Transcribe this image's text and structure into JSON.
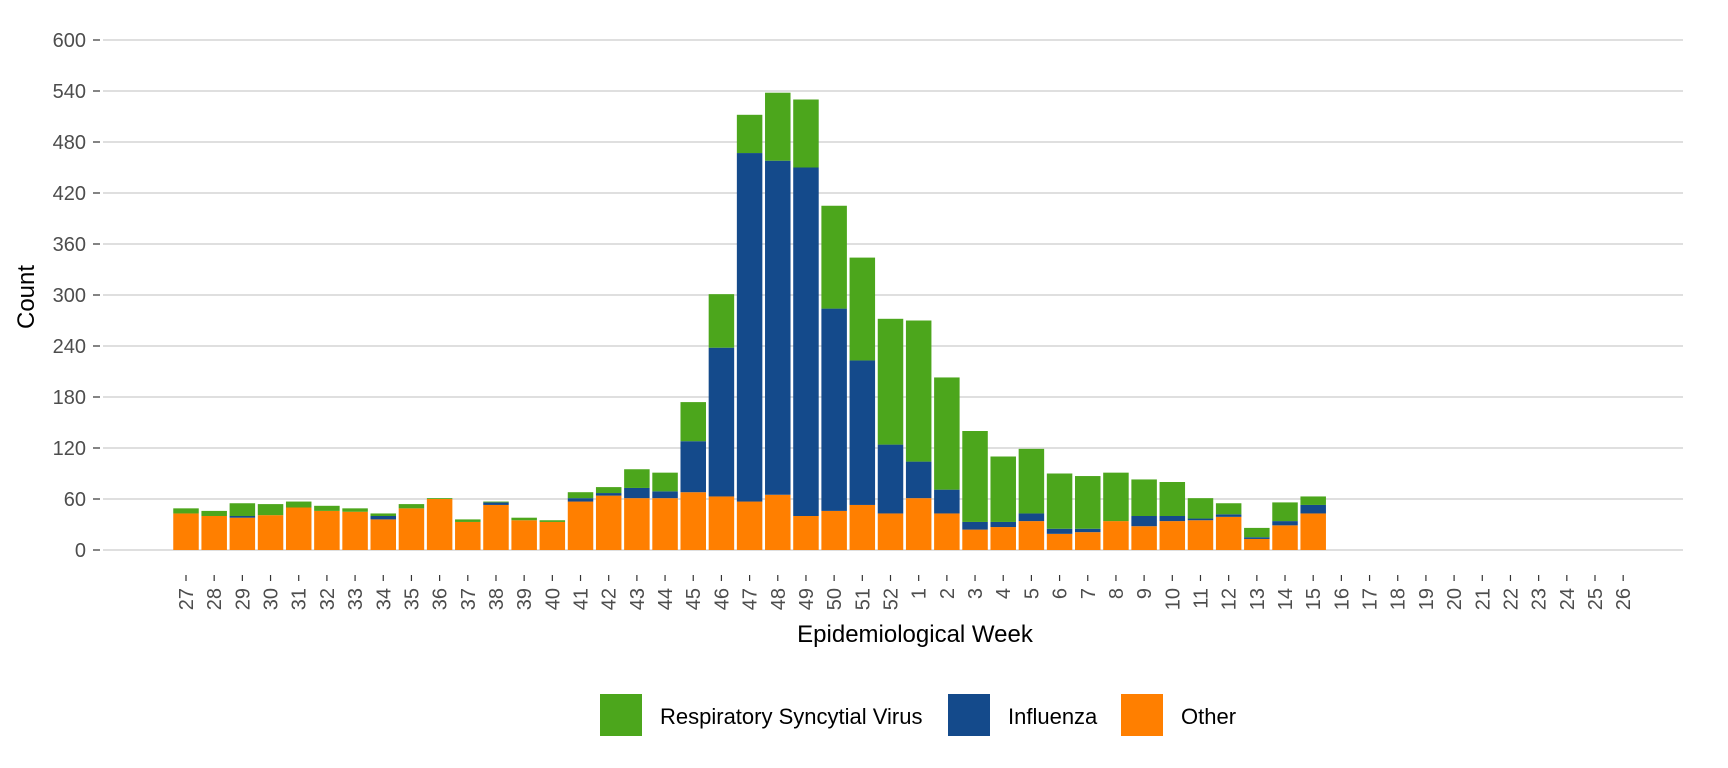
{
  "chart_data": {
    "type": "bar",
    "stacked": true,
    "xlabel": "Epidemiological Week",
    "ylabel": "Count",
    "ylim": [
      0,
      600
    ],
    "yticks": [
      0,
      60,
      120,
      180,
      240,
      300,
      360,
      420,
      480,
      540,
      600
    ],
    "grid": "horizontal",
    "legend_position": "bottom",
    "categories": [
      "27",
      "28",
      "29",
      "30",
      "31",
      "32",
      "33",
      "34",
      "35",
      "36",
      "37",
      "38",
      "39",
      "40",
      "41",
      "42",
      "43",
      "44",
      "45",
      "46",
      "47",
      "48",
      "49",
      "50",
      "51",
      "52",
      "1",
      "2",
      "3",
      "4",
      "5",
      "6",
      "7",
      "8",
      "9",
      "10",
      "11",
      "12",
      "13",
      "14",
      "15",
      "16",
      "17",
      "18",
      "19",
      "20",
      "21",
      "22",
      "23",
      "24",
      "25",
      "26"
    ],
    "series": [
      {
        "name": "Other",
        "color": "#FF7F00",
        "values": [
          43,
          40,
          38,
          41,
          50,
          46,
          45,
          36,
          49,
          60,
          33,
          53,
          35,
          33,
          57,
          64,
          61,
          61,
          68,
          63,
          57,
          65,
          40,
          46,
          53,
          43,
          61,
          43,
          24,
          27,
          34,
          19,
          21,
          34,
          28,
          34,
          35,
          39,
          13,
          29,
          43,
          0,
          0,
          0,
          0,
          0,
          0,
          0,
          0,
          0,
          0,
          0
        ]
      },
      {
        "name": "Influenza",
        "color": "#144A8B",
        "values": [
          0,
          0,
          2,
          0,
          0,
          0,
          0,
          4,
          0,
          0,
          0,
          3,
          0,
          0,
          4,
          3,
          12,
          8,
          60,
          175,
          410,
          393,
          410,
          238,
          170,
          81,
          43,
          28,
          9,
          6,
          9,
          6,
          4,
          0,
          12,
          6,
          2,
          3,
          2,
          5,
          10,
          0,
          0,
          0,
          0,
          0,
          0,
          0,
          0,
          0,
          0,
          0
        ]
      },
      {
        "name": "Respiratory Syncytial Virus",
        "color": "#4CA61C",
        "values": [
          6,
          6,
          15,
          13,
          7,
          6,
          4,
          3,
          5,
          1,
          3,
          1,
          3,
          2,
          7,
          7,
          22,
          22,
          46,
          63,
          45,
          80,
          80,
          121,
          121,
          148,
          166,
          132,
          107,
          77,
          76,
          65,
          62,
          57,
          43,
          40,
          24,
          13,
          11,
          22,
          10,
          0,
          0,
          0,
          0,
          0,
          0,
          0,
          0,
          0,
          0,
          0
        ]
      }
    ],
    "legend_order": [
      "Respiratory Syncytial Virus",
      "Influenza",
      "Other"
    ]
  }
}
